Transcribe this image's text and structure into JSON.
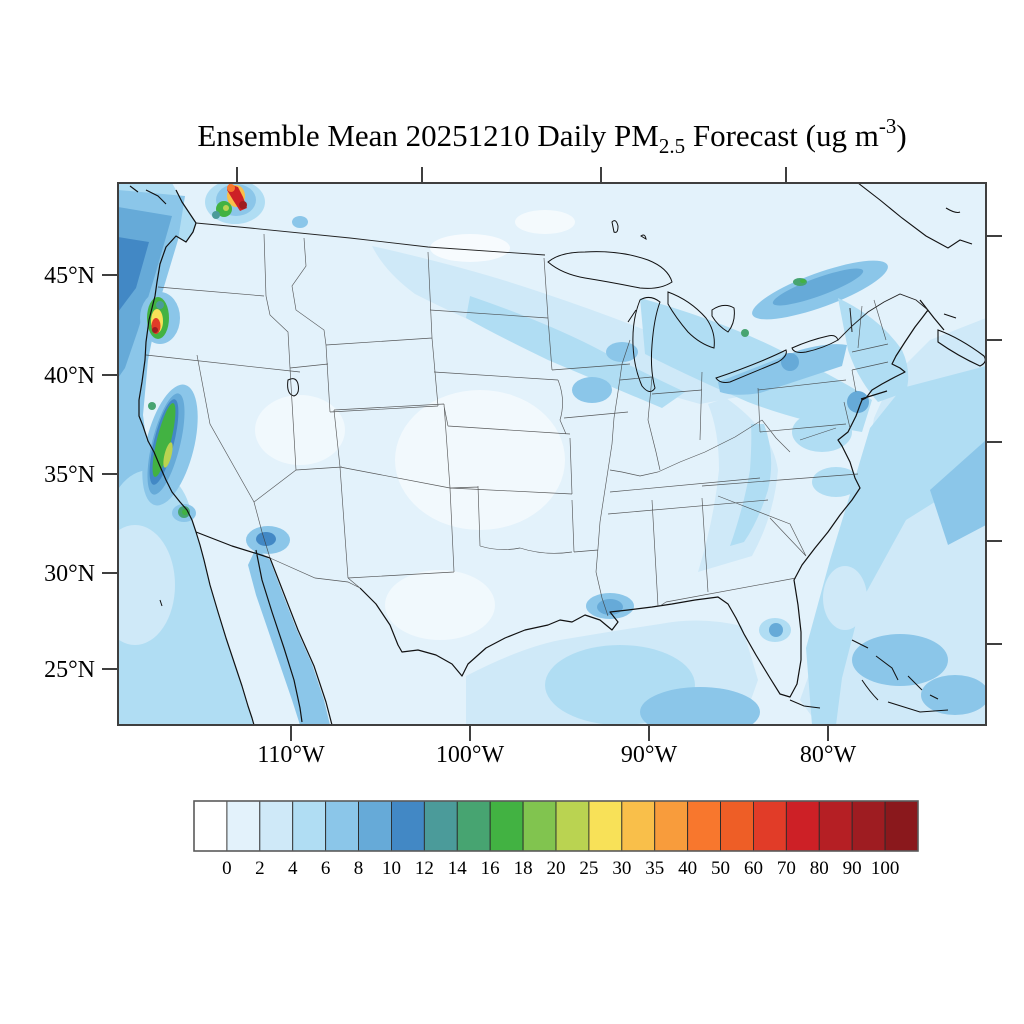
{
  "title": {
    "part1": "Ensemble Mean 20251210 Daily PM",
    "subscript": "2.5",
    "part2": " Forecast (ug m",
    "superscript": "-3",
    "part3": ")"
  },
  "axes": {
    "x": {
      "ticks": [
        "110°W",
        "100°W",
        "90°W",
        "80°W"
      ]
    },
    "y": {
      "ticks": [
        "45°N",
        "40°N",
        "35°N",
        "30°N",
        "25°N"
      ]
    }
  },
  "colorbar": {
    "labels": [
      "0",
      "2",
      "4",
      "6",
      "8",
      "10",
      "12",
      "14",
      "16",
      "18",
      "20",
      "25",
      "30",
      "35",
      "40",
      "50",
      "60",
      "70",
      "80",
      "90",
      "100"
    ],
    "colors": [
      "#ffffff",
      "#e3f2fb",
      "#cfe9f8",
      "#b0ddf3",
      "#8bc6e9",
      "#66aad8",
      "#4288c5",
      "#4b9b9a",
      "#47a471",
      "#42b242",
      "#81c44f",
      "#bad351",
      "#f8e158",
      "#f9bf4a",
      "#f89c3c",
      "#f8772d",
      "#ee5e26",
      "#e13c28",
      "#cd2026",
      "#b51f24",
      "#9e1c21",
      "#8a181c"
    ]
  },
  "chart_data": {
    "type": "heatmap",
    "title": "Ensemble Mean 20251210 Daily PM2.5 Forecast (ug m-3)",
    "date": "20251210",
    "variable": "Daily PM2.5",
    "statistic": "Ensemble Mean",
    "units": "ug m-3",
    "region": "Contiguous United States with southern Canada and northern Mexico",
    "levels": [
      0,
      2,
      4,
      6,
      8,
      10,
      12,
      14,
      16,
      18,
      20,
      25,
      30,
      35,
      40,
      50,
      60,
      70,
      80,
      90,
      100
    ],
    "palette": [
      "#ffffff",
      "#e3f2fb",
      "#cfe9f8",
      "#b0ddf3",
      "#8bc6e9",
      "#66aad8",
      "#4288c5",
      "#4b9b9a",
      "#47a471",
      "#42b242",
      "#81c44f",
      "#bad351",
      "#f8e158",
      "#f9bf4a",
      "#f89c3c",
      "#f8772d",
      "#ee5e26",
      "#e13c28",
      "#cd2026",
      "#b51f24",
      "#9e1c21",
      "#8a181c"
    ],
    "x_axis": {
      "label_type": "longitude",
      "tick_labels": [
        "110°W",
        "100°W",
        "90°W",
        "80°W"
      ]
    },
    "y_axis": {
      "label_type": "latitude",
      "tick_labels": [
        "45°N",
        "40°N",
        "35°N",
        "30°N",
        "25°N"
      ]
    },
    "legend_position": "bottom horizontal colorbar",
    "features": [
      {
        "area": "northern Washington / British Columbia border hotspot",
        "value_ugm3": "locally >100"
      },
      {
        "area": "southwest Oregon coastal hotspot",
        "value_ugm3": "locally >100"
      },
      {
        "area": "California Central Valley elongated plume",
        "value_ugm3": "16-25"
      },
      {
        "area": "Los Angeles coastal spot",
        "value_ugm3": "14-18"
      },
      {
        "area": "Phoenix Arizona spot",
        "value_ugm3": "8-12"
      },
      {
        "area": "Pacific Northwest offshore waters",
        "value_ugm3": "6-12"
      },
      {
        "area": "upper Midwest / Great Lakes diagonal band",
        "value_ugm3": "4-10"
      },
      {
        "area": "St. Lawrence Valley near Montreal",
        "value_ugm3": "8-16"
      },
      {
        "area": "Northeast corridor around New York City",
        "value_ugm3": "6-10"
      },
      {
        "area": "Appalachians and Southeast band",
        "value_ugm3": "4-8"
      },
      {
        "area": "New Orleans Gulf coast spot",
        "value_ugm3": "6-10"
      },
      {
        "area": "central Florida spot",
        "value_ugm3": "6-10"
      },
      {
        "area": "Great Plains and interior West",
        "value_ugm3": "0-4"
      }
    ]
  }
}
